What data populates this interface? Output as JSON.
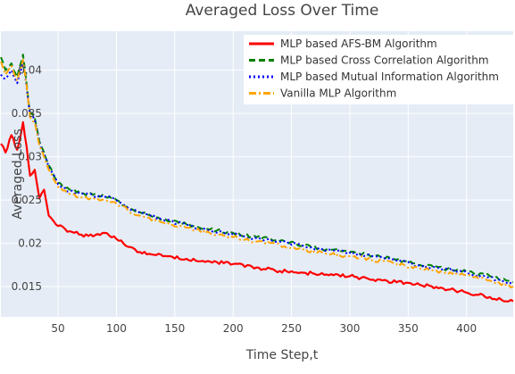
{
  "chart_data": {
    "type": "line",
    "title": "Averaged Loss Over Time",
    "xlabel": "Time Step,t",
    "ylabel": "Averaged Loss",
    "xlim": [
      1,
      440
    ],
    "ylim": [
      0.0115,
      0.0445
    ],
    "x_ticks": [
      50,
      100,
      150,
      200,
      250,
      300,
      350,
      400
    ],
    "y_ticks": [
      0.015,
      0.02,
      0.025,
      0.03,
      0.035,
      0.04
    ],
    "y_tick_labels": [
      "0.015",
      "0.02",
      "0.025",
      "0.03",
      "0.035",
      "0.04"
    ],
    "grid": true,
    "plot_background": "#e5ecf6",
    "legend_position": "top-right",
    "series": [
      {
        "name": "MLP based AFS-BM Algorithm",
        "color": "#ff0000",
        "dash": "solid",
        "x": [
          1,
          5,
          10,
          15,
          20,
          23,
          26,
          30,
          34,
          38,
          42,
          50,
          60,
          70,
          80,
          90,
          100,
          110,
          120,
          140,
          160,
          180,
          200,
          220,
          240,
          260,
          280,
          300,
          320,
          340,
          360,
          380,
          400,
          420,
          440
        ],
        "y": [
          0.0315,
          0.0305,
          0.0325,
          0.0308,
          0.034,
          0.0312,
          0.0278,
          0.0285,
          0.0252,
          0.0262,
          0.0232,
          0.022,
          0.0214,
          0.021,
          0.0208,
          0.0212,
          0.0205,
          0.0196,
          0.019,
          0.0185,
          0.0182,
          0.0179,
          0.0176,
          0.0172,
          0.0168,
          0.0166,
          0.0164,
          0.0162,
          0.0158,
          0.0155,
          0.0152,
          0.0148,
          0.0143,
          0.0138,
          0.0133
        ]
      },
      {
        "name": "MLP based Cross Correlation Algorithm",
        "color": "#008000",
        "dash": "dash",
        "x": [
          1,
          5,
          10,
          15,
          20,
          23,
          26,
          30,
          34,
          38,
          42,
          50,
          60,
          70,
          80,
          90,
          100,
          110,
          120,
          140,
          160,
          180,
          200,
          220,
          240,
          260,
          280,
          300,
          320,
          340,
          360,
          380,
          400,
          420,
          440
        ],
        "y": [
          0.0415,
          0.04,
          0.0408,
          0.0392,
          0.0418,
          0.0385,
          0.035,
          0.0345,
          0.0318,
          0.0305,
          0.029,
          0.027,
          0.0262,
          0.0258,
          0.0256,
          0.0255,
          0.025,
          0.0242,
          0.0236,
          0.0228,
          0.0222,
          0.0216,
          0.0212,
          0.0207,
          0.0203,
          0.0198,
          0.0193,
          0.019,
          0.0186,
          0.0181,
          0.0175,
          0.0171,
          0.0167,
          0.0162,
          0.0155
        ]
      },
      {
        "name": "MLP based Mutual Information Algorithm",
        "color": "#0000ff",
        "dash": "dot",
        "x": [
          1,
          5,
          10,
          15,
          20,
          23,
          26,
          30,
          34,
          38,
          42,
          50,
          60,
          70,
          80,
          90,
          100,
          110,
          120,
          140,
          160,
          180,
          200,
          220,
          240,
          260,
          280,
          300,
          320,
          340,
          360,
          380,
          400,
          420,
          440
        ],
        "y": [
          0.0395,
          0.039,
          0.04,
          0.0385,
          0.041,
          0.038,
          0.0348,
          0.0343,
          0.0316,
          0.0303,
          0.0288,
          0.0268,
          0.026,
          0.0257,
          0.0255,
          0.0254,
          0.025,
          0.0241,
          0.0235,
          0.0227,
          0.0221,
          0.0215,
          0.021,
          0.0206,
          0.0202,
          0.0197,
          0.0192,
          0.0189,
          0.0185,
          0.018,
          0.0174,
          0.017,
          0.0166,
          0.016,
          0.0153
        ]
      },
      {
        "name": "Vanilla MLP Algorithm",
        "color": "#ffa500",
        "dash": "dashdot",
        "x": [
          1,
          5,
          10,
          15,
          20,
          23,
          26,
          30,
          34,
          38,
          42,
          50,
          60,
          70,
          80,
          90,
          100,
          110,
          120,
          140,
          160,
          180,
          200,
          220,
          240,
          260,
          280,
          300,
          320,
          340,
          360,
          380,
          400,
          420,
          440
        ],
        "y": [
          0.041,
          0.0395,
          0.0405,
          0.0388,
          0.0412,
          0.0382,
          0.0346,
          0.034,
          0.0313,
          0.03,
          0.0285,
          0.0265,
          0.0257,
          0.0253,
          0.0251,
          0.025,
          0.0246,
          0.0238,
          0.0232,
          0.0224,
          0.0218,
          0.0212,
          0.0207,
          0.0202,
          0.0198,
          0.0193,
          0.0188,
          0.0185,
          0.0181,
          0.0176,
          0.0171,
          0.0167,
          0.0163,
          0.0157,
          0.015
        ]
      }
    ]
  }
}
